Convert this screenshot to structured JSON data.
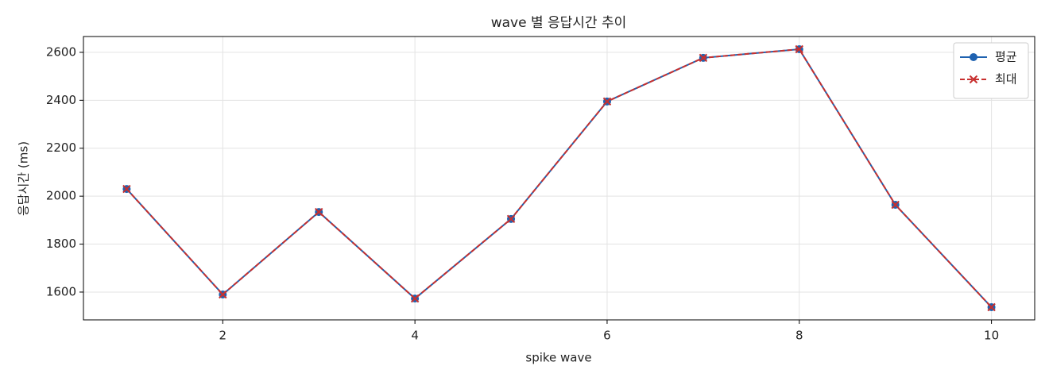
{
  "chart_data": {
    "type": "line",
    "title": "wave 별 응답시간 추이",
    "xlabel": "spike wave",
    "ylabel": "응답시간 (ms)",
    "x": [
      1,
      2,
      3,
      4,
      5,
      6,
      7,
      8,
      9,
      10
    ],
    "series": [
      {
        "name": "평균",
        "color": "#1f62b0",
        "marker": "o",
        "linestyle": "solid",
        "values": [
          2030,
          1590,
          1934,
          1573,
          1905,
          2395,
          2577,
          2613,
          1964,
          1537
        ]
      },
      {
        "name": "최대",
        "color": "#c8302f",
        "marker": "x",
        "linestyle": "dashed",
        "values": [
          2030,
          1590,
          1934,
          1573,
          1905,
          2395,
          2577,
          2613,
          1964,
          1537
        ]
      }
    ],
    "xlim": [
      0.55,
      10.45
    ],
    "xticks": [
      2,
      4,
      6,
      8,
      10
    ],
    "ylim": [
      1484,
      2666
    ],
    "yticks": [
      1600,
      1800,
      2000,
      2200,
      2400,
      2600
    ],
    "grid": true,
    "legend": "upper right"
  }
}
